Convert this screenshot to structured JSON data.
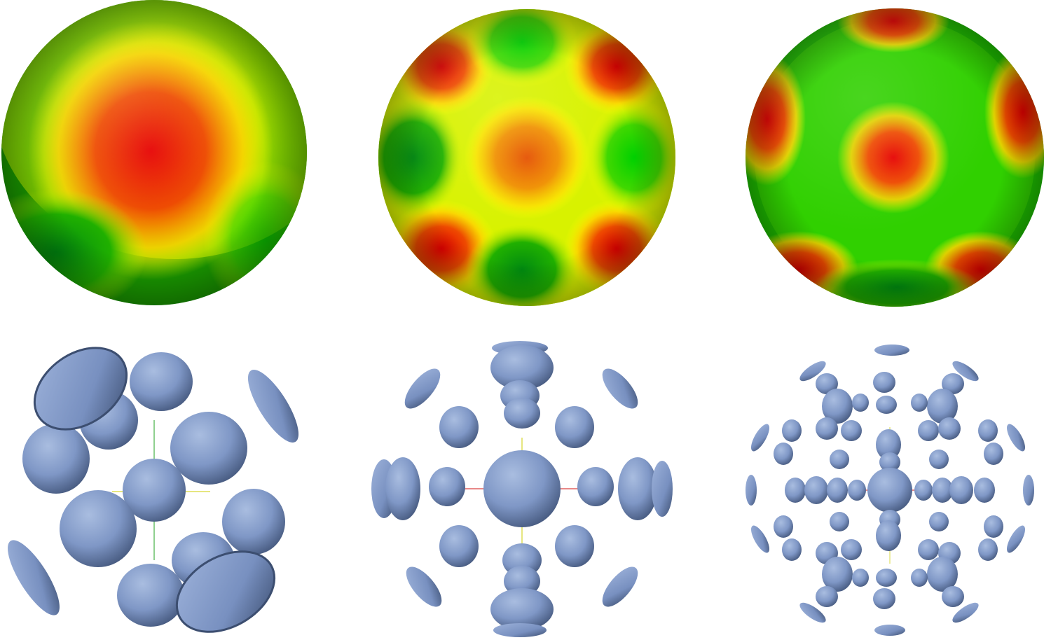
{
  "figure": {
    "panels": [
      {
        "row": "top",
        "column": 1,
        "content": "sphere-colormap",
        "pattern": "single-dipole"
      },
      {
        "row": "top",
        "column": 2,
        "content": "sphere-colormap",
        "pattern": "cubic-lattice"
      },
      {
        "row": "top",
        "column": 3,
        "content": "sphere-colormap",
        "pattern": "dense-lattice"
      },
      {
        "row": "bottom",
        "column": 1,
        "content": "blob-cluster"
      },
      {
        "row": "bottom",
        "column": 2,
        "content": "blob-cluster"
      },
      {
        "row": "bottom",
        "column": 3,
        "content": "blob-cluster"
      }
    ],
    "colors": {
      "high": "#e00000",
      "mid": "#ffff00",
      "low": "#00b000",
      "blob": "#7f97c6",
      "blob_shadow": "#3f5274",
      "background": "#ffffff"
    }
  }
}
